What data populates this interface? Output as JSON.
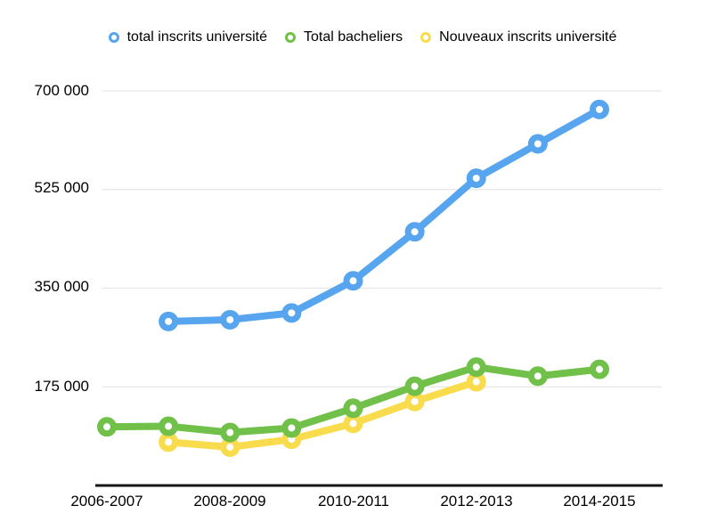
{
  "chart_data": {
    "type": "line",
    "title": "",
    "legend_position": "top",
    "grid": "horizontal",
    "gridline_color": "#e6e6e6",
    "axis_color": "#161616",
    "background_color": "#ffffff",
    "categories": [
      "2006-2007",
      "2007-2008",
      "2008-2009",
      "2009-2010",
      "2010-2011",
      "2011-2012",
      "2012-2013",
      "2013-2014",
      "2014-2015"
    ],
    "xtick_labels": [
      "2006-2007",
      "2008-2009",
      "2010-2011",
      "2012-2013",
      "2014-2015"
    ],
    "ytick_labels": [
      "700 000",
      "525 000",
      "350 000",
      "175 000"
    ],
    "ytick_values": [
      700000,
      525000,
      350000,
      175000
    ],
    "ylim": [
      0,
      700000
    ],
    "series": [
      {
        "name": "total inscrits université",
        "color": "#58a5ef",
        "marker": "circle",
        "start_index": 1,
        "values": [
          291000,
          294000,
          306000,
          363000,
          450000,
          545000,
          606000,
          667000
        ]
      },
      {
        "name": "Total bacheliers",
        "color": "#71c049",
        "marker": "circle",
        "start_index": 0,
        "values": [
          104000,
          105000,
          94000,
          102000,
          137000,
          176000,
          210000,
          194000,
          206000
        ]
      },
      {
        "name": "Nouveaux inscrits université",
        "color": "#f9dc4d",
        "marker": "circle",
        "start_index": 1,
        "values": [
          77000,
          68000,
          82000,
          110000,
          149000,
          184000
        ]
      }
    ]
  }
}
